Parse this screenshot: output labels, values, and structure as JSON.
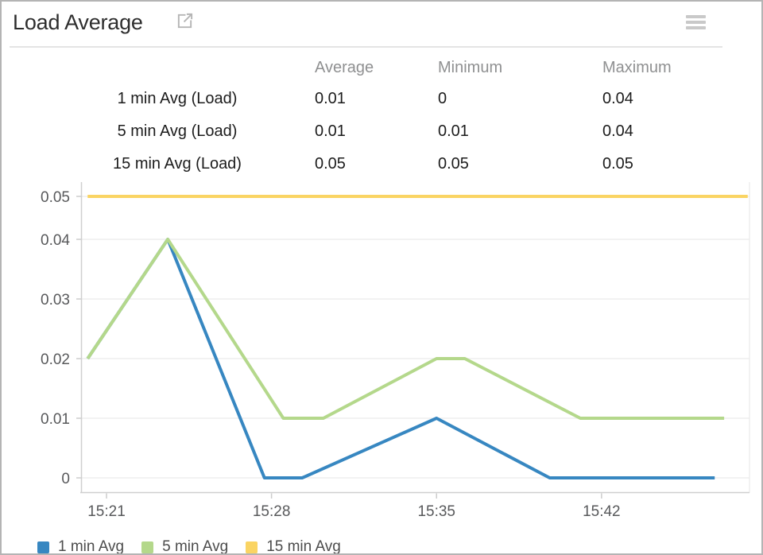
{
  "header": {
    "title": "Load Average"
  },
  "stats_table": {
    "columns": [
      "Average",
      "Minimum",
      "Maximum"
    ],
    "rows": [
      {
        "label": "1 min Avg (Load)",
        "average": "0.01",
        "minimum": "0",
        "maximum": "0.04"
      },
      {
        "label": "5 min Avg (Load)",
        "average": "0.01",
        "minimum": "0.01",
        "maximum": "0.04"
      },
      {
        "label": "15 min Avg (Load)",
        "average": "0.05",
        "minimum": "0.05",
        "maximum": "0.05"
      }
    ]
  },
  "chart_data": {
    "type": "line",
    "title": "Load Average",
    "xlabel": "",
    "ylabel": "",
    "ylim": [
      0,
      0.05
    ],
    "y_ticks": [
      0,
      0.01,
      0.02,
      0.03,
      0.04,
      0.05
    ],
    "y_tick_labels": [
      "0",
      "0.01",
      "0.02",
      "0.03",
      "0.04",
      "0.05"
    ],
    "x_ticks": [
      {
        "t": 21,
        "label": "15:21"
      },
      {
        "t": 28,
        "label": "15:28"
      },
      {
        "t": 35,
        "label": "15:35"
      },
      {
        "t": 42,
        "label": "15:42"
      }
    ],
    "x_range_minutes_after_1500": [
      19.9,
      48.3
    ],
    "grid": "horizontal",
    "legend_position": "bottom-left",
    "series": [
      {
        "name": "1 min Avg",
        "color": "#3787c1",
        "points_t_v": [
          [
            20.2,
            0.02
          ],
          [
            23.6,
            0.04
          ],
          [
            27.7,
            0
          ],
          [
            29.3,
            0
          ],
          [
            35,
            0.01
          ],
          [
            39.8,
            0
          ],
          [
            46.8,
            0
          ]
        ]
      },
      {
        "name": "5 min Avg",
        "color": "#b4d88b",
        "points_t_v": [
          [
            20.2,
            0.02
          ],
          [
            23.6,
            0.04
          ],
          [
            28.5,
            0.01
          ],
          [
            30.2,
            0.01
          ],
          [
            35,
            0.02
          ],
          [
            36.2,
            0.02
          ],
          [
            41.1,
            0.01
          ],
          [
            47.2,
            0.01
          ]
        ]
      },
      {
        "name": "15 min Avg",
        "color": "#fad463",
        "points_t_v": [
          [
            20.2,
            0.05
          ],
          [
            48.2,
            0.05
          ]
        ]
      }
    ]
  }
}
